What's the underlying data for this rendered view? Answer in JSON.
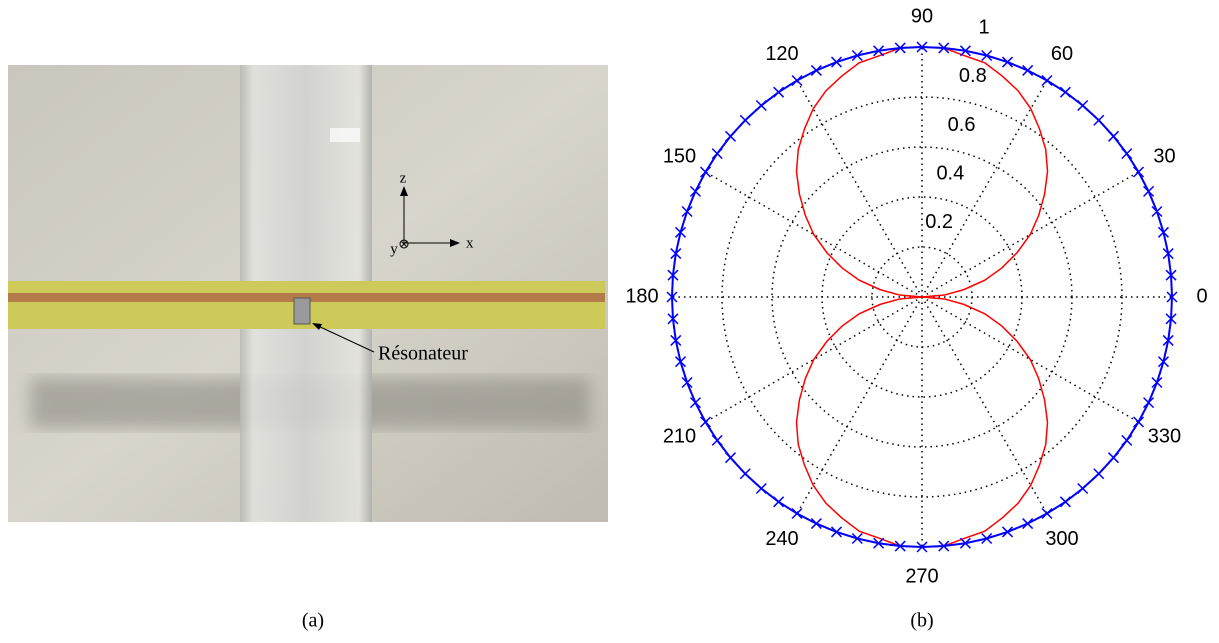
{
  "figure": {
    "photo_labels": {
      "z": "z",
      "x": "x",
      "y": "y",
      "resonator": "Résonateur"
    },
    "captions": [
      "(a)",
      "(b)"
    ]
  },
  "chart_data": {
    "type": "polar",
    "theta": [
      0,
      5,
      10,
      15,
      20,
      25,
      30,
      35,
      40,
      45,
      50,
      55,
      60,
      65,
      70,
      75,
      80,
      85,
      90,
      95,
      100,
      105,
      110,
      115,
      120,
      125,
      130,
      135,
      140,
      145,
      150,
      155,
      160,
      165,
      170,
      175,
      180,
      185,
      190,
      195,
      200,
      205,
      210,
      215,
      220,
      225,
      230,
      235,
      240,
      245,
      250,
      255,
      260,
      265,
      270,
      275,
      280,
      285,
      290,
      295,
      300,
      305,
      310,
      315,
      320,
      325,
      330,
      335,
      340,
      345,
      350,
      355
    ],
    "series": [
      {
        "color": "#ff0000",
        "marker": "none",
        "values": [
          0,
          0.09,
          0.17,
          0.26,
          0.34,
          0.42,
          0.5,
          0.57,
          0.64,
          0.71,
          0.77,
          0.82,
          0.87,
          0.91,
          0.94,
          0.97,
          0.98,
          1,
          1,
          1,
          0.98,
          0.97,
          0.94,
          0.91,
          0.87,
          0.82,
          0.77,
          0.71,
          0.64,
          0.57,
          0.5,
          0.42,
          0.34,
          0.26,
          0.17,
          0.09,
          0,
          0.09,
          0.17,
          0.26,
          0.34,
          0.42,
          0.5,
          0.57,
          0.64,
          0.71,
          0.77,
          0.82,
          0.87,
          0.91,
          0.94,
          0.97,
          0.98,
          1,
          1,
          1,
          0.98,
          0.97,
          0.94,
          0.91,
          0.87,
          0.82,
          0.77,
          0.71,
          0.64,
          0.57,
          0.5,
          0.42,
          0.34,
          0.26,
          0.17,
          0.09
        ]
      },
      {
        "color": "#0000ff",
        "marker": "x",
        "values": [
          1,
          1,
          1,
          1,
          1,
          1,
          1,
          1,
          1,
          1,
          1,
          1,
          1,
          1,
          1,
          1,
          1,
          1,
          1,
          1,
          1,
          1,
          1,
          1,
          1,
          1,
          1,
          1,
          1,
          1,
          1,
          1,
          1,
          1,
          1,
          1,
          1,
          1,
          1,
          1,
          1,
          1,
          1,
          1,
          1,
          1,
          1,
          1,
          1,
          1,
          1,
          1,
          1,
          1,
          1,
          1,
          1,
          1,
          1,
          1,
          1,
          1,
          1,
          1,
          1,
          1,
          1,
          1,
          1,
          1,
          1,
          1
        ]
      }
    ],
    "rlim": [
      0,
      1
    ],
    "rticks": [
      0.2,
      0.4,
      0.6,
      0.8,
      1
    ],
    "thetaticks": [
      0,
      30,
      60,
      90,
      120,
      150,
      180,
      210,
      240,
      270,
      300,
      330
    ],
    "grid": true
  }
}
